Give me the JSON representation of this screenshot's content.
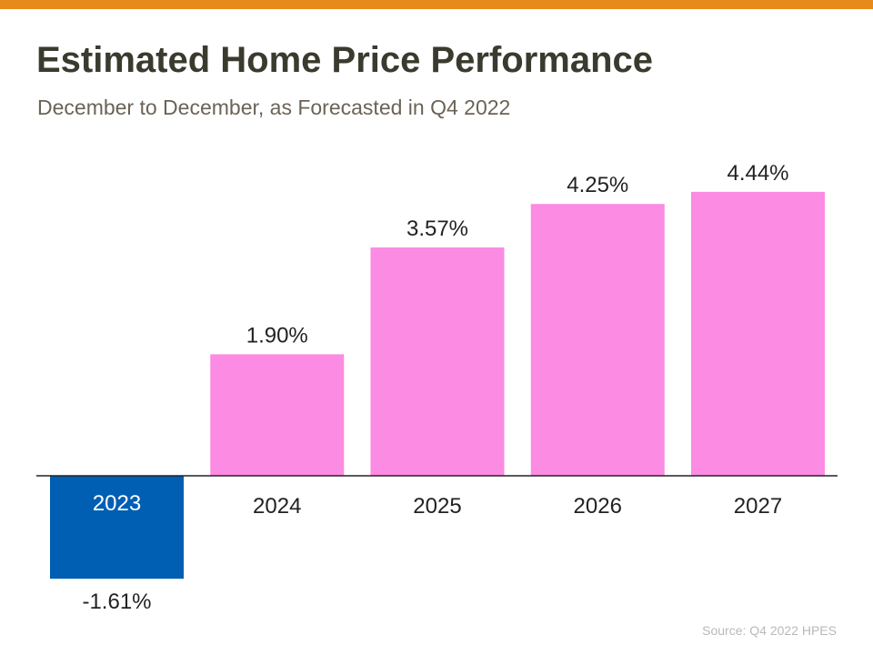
{
  "header": {
    "title": "Estimated Home Price Performance",
    "subtitle": "December to December, as Forecasted in Q4 2022"
  },
  "footer": {
    "source": "Source: Q4 2022 HPES"
  },
  "colors": {
    "accent_bar": "#e8891c",
    "positive": "#fb8be3",
    "negative": "#005eb3",
    "axis": "#222222",
    "text": "#222222"
  },
  "chart_data": {
    "type": "bar",
    "categories": [
      "2023",
      "2024",
      "2025",
      "2026",
      "2027"
    ],
    "values": [
      -1.61,
      1.9,
      3.57,
      4.25,
      4.44
    ],
    "value_labels": [
      "-1.61%",
      "1.90%",
      "3.57%",
      "4.25%",
      "4.44%"
    ],
    "title": "Estimated Home Price Performance",
    "subtitle": "December to December, as Forecasted in Q4 2022",
    "xlabel": "",
    "ylabel": "",
    "grid": false,
    "legend": "none"
  }
}
